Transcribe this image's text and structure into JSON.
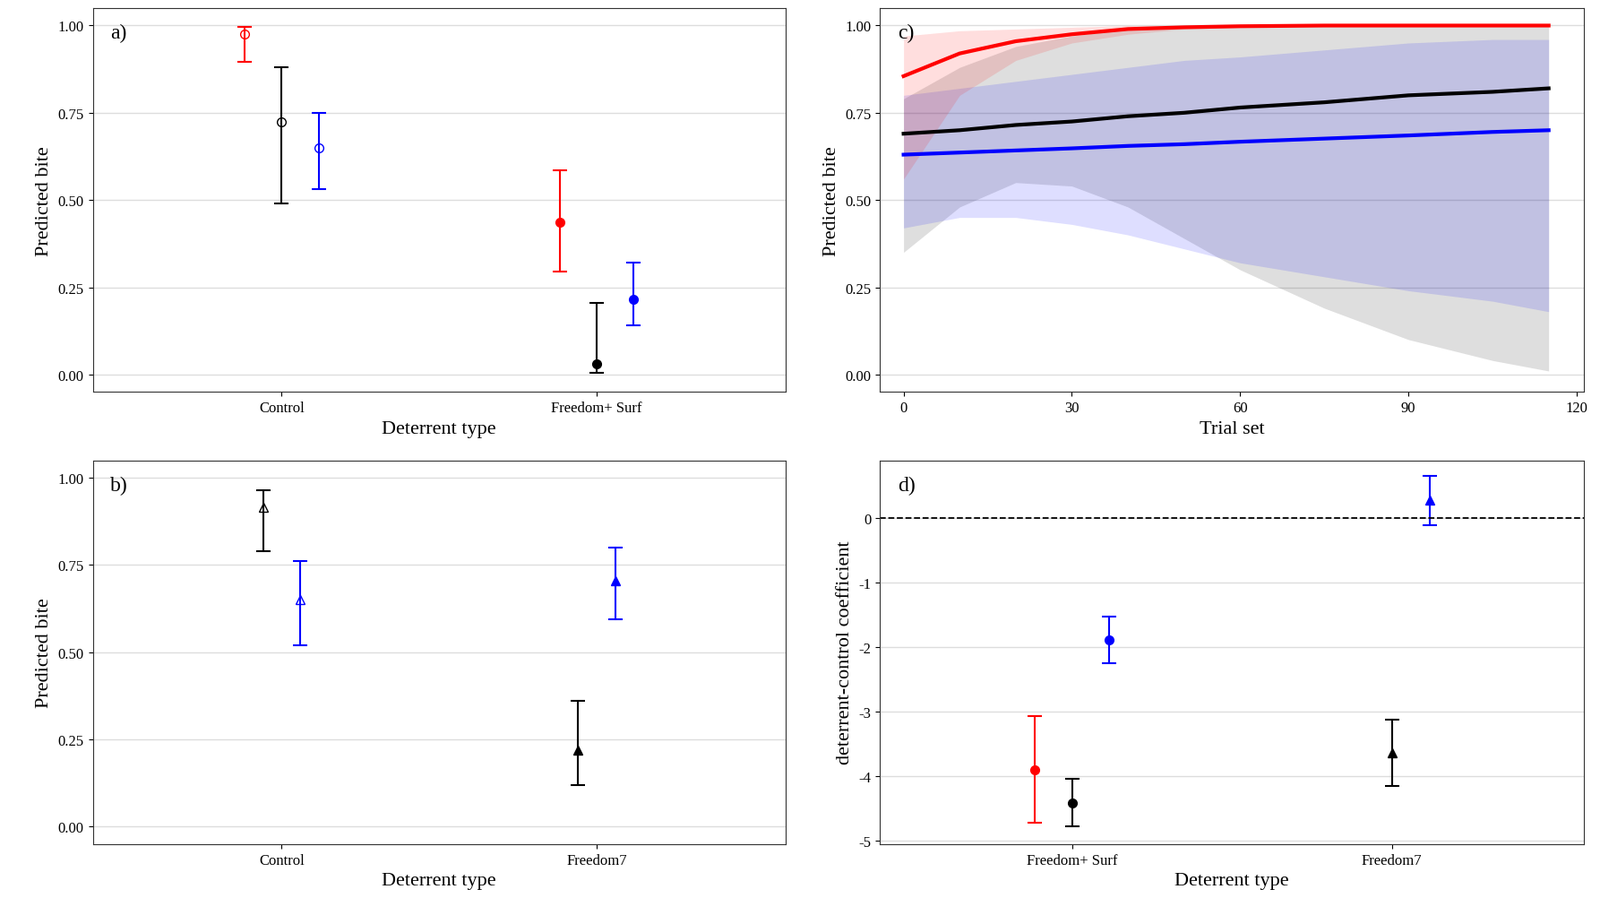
{
  "chart_data": [
    {
      "type": "errorbar",
      "title": "a)",
      "x_label": "Deterrent type",
      "y_label": "Predicted bite",
      "categories": [
        "Control",
        "Freedom+ Surf"
      ],
      "ylim": [
        -0.05,
        1.05
      ],
      "yticks": [
        {
          "value": 0,
          "label": "0.00"
        },
        {
          "value": 0.25,
          "label": "0.25"
        },
        {
          "value": 0.5,
          "label": "0.50"
        },
        {
          "value": 0.75,
          "label": "0.75"
        },
        {
          "value": 1,
          "label": "1.00"
        }
      ],
      "grid": true,
      "series": [
        {
          "color": "#ff0000",
          "marker": "open circle",
          "values": [
            0.975,
            null
          ],
          "lower": [
            0.895,
            null
          ],
          "upper": [
            0.995,
            null
          ]
        },
        {
          "color": "#000000",
          "marker": "open circle",
          "values": [
            0.725,
            null
          ],
          "lower": [
            0.49,
            null
          ],
          "upper": [
            0.88,
            null
          ]
        },
        {
          "color": "#0000ff",
          "marker": "open circle",
          "values": [
            0.65,
            null
          ],
          "lower": [
            0.53,
            null
          ],
          "upper": [
            0.75,
            null
          ]
        },
        {
          "color": "#ff0000",
          "marker": "circle",
          "values": [
            null,
            0.435
          ],
          "lower": [
            null,
            0.295
          ],
          "upper": [
            null,
            0.585
          ]
        },
        {
          "color": "#000000",
          "marker": "circle",
          "values": [
            null,
            0.03
          ],
          "lower": [
            null,
            0.005
          ],
          "upper": [
            null,
            0.205
          ]
        },
        {
          "color": "#0000ff",
          "marker": "circle",
          "values": [
            null,
            0.215
          ],
          "lower": [
            null,
            0.14
          ],
          "upper": [
            null,
            0.32
          ]
        }
      ]
    },
    {
      "type": "line",
      "title": "c)",
      "x_label": "Trial set",
      "y_label": "Predicted bite",
      "x": [
        0,
        10,
        20,
        30,
        40,
        50,
        60,
        75,
        90,
        105,
        115
      ],
      "xlim": [
        -4.2,
        121.3
      ],
      "xticks": [
        0,
        30,
        60,
        90,
        120
      ],
      "ylim": [
        -0.05,
        1.05
      ],
      "yticks": [
        {
          "value": 0,
          "label": "0.00"
        },
        {
          "value": 0.25,
          "label": "0.25"
        },
        {
          "value": 0.5,
          "label": "0.50"
        },
        {
          "value": 0.75,
          "label": "0.75"
        },
        {
          "value": 1,
          "label": "1.00"
        }
      ],
      "grid": true,
      "series": [
        {
          "color": "#000000",
          "values": [
            0.69,
            0.7,
            0.715,
            0.725,
            0.74,
            0.75,
            0.765,
            0.78,
            0.8,
            0.81,
            0.82
          ],
          "lower": [
            0.35,
            0.48,
            0.55,
            0.54,
            0.48,
            0.39,
            0.3,
            0.19,
            0.1,
            0.04,
            0.01
          ],
          "upper": [
            0.79,
            0.88,
            0.94,
            0.97,
            0.99,
            1.0,
            1.0,
            1.0,
            1.0,
            1.0,
            1.0
          ]
        },
        {
          "color": "#0000ff",
          "values": [
            0.63,
            0.636,
            0.642,
            0.648,
            0.655,
            0.66,
            0.667,
            0.676,
            0.685,
            0.695,
            0.7
          ],
          "lower": [
            0.42,
            0.45,
            0.45,
            0.43,
            0.4,
            0.36,
            0.32,
            0.28,
            0.24,
            0.21,
            0.18
          ],
          "upper": [
            0.8,
            0.82,
            0.84,
            0.86,
            0.88,
            0.9,
            0.91,
            0.93,
            0.95,
            0.96,
            0.96
          ]
        },
        {
          "color": "#ff0000",
          "values": [
            0.855,
            0.92,
            0.955,
            0.975,
            0.99,
            0.995,
            0.998,
            1.0,
            1.0,
            1.0,
            1.0
          ],
          "lower": [
            0.56,
            0.8,
            0.9,
            0.95,
            0.975,
            0.99,
            0.995,
            0.999,
            1.0,
            1.0,
            1.0
          ],
          "upper": [
            0.97,
            0.985,
            0.99,
            0.995,
            1.0,
            1.0,
            1.0,
            1.0,
            1.0,
            1.0,
            1.0
          ]
        }
      ]
    },
    {
      "type": "errorbar",
      "title": "b)",
      "x_label": "Deterrent type",
      "y_label": "Predicted bite",
      "categories": [
        "Control",
        "Freedom7"
      ],
      "ylim": [
        -0.05,
        1.05
      ],
      "yticks": [
        {
          "value": 0,
          "label": "0.00"
        },
        {
          "value": 0.25,
          "label": "0.25"
        },
        {
          "value": 0.5,
          "label": "0.50"
        },
        {
          "value": 0.75,
          "label": "0.75"
        },
        {
          "value": 1,
          "label": "1.00"
        }
      ],
      "grid": true,
      "series": [
        {
          "color": "#000000",
          "marker": "open triangle",
          "values": [
            0.915,
            null
          ],
          "lower": [
            0.79,
            null
          ],
          "upper": [
            0.965,
            null
          ]
        },
        {
          "color": "#0000ff",
          "marker": "open triangle",
          "values": [
            0.65,
            null
          ],
          "lower": [
            0.52,
            null
          ],
          "upper": [
            0.76,
            null
          ]
        },
        {
          "color": "#000000",
          "marker": "triangle",
          "values": [
            null,
            0.22
          ],
          "lower": [
            null,
            0.12
          ],
          "upper": [
            null,
            0.36
          ]
        },
        {
          "color": "#0000ff",
          "marker": "triangle",
          "values": [
            null,
            0.705
          ],
          "lower": [
            null,
            0.595
          ],
          "upper": [
            null,
            0.8
          ]
        }
      ]
    },
    {
      "type": "errorbar",
      "title": "d)",
      "x_label": "Deterrent type",
      "y_label": "deterrent-control coefficient",
      "categories": [
        "Freedom+ Surf",
        "Freedom7"
      ],
      "ylim": [
        -5.05,
        0.9
      ],
      "yticks": [
        -5,
        -4,
        -3,
        -2,
        -1,
        0
      ],
      "grid": true,
      "hline": {
        "value": 0,
        "line_style": "dashed"
      },
      "series": [
        {
          "color": "#ff0000",
          "marker": "circle",
          "values": [
            -3.9,
            null
          ],
          "lower": [
            -4.72,
            null
          ],
          "upper": [
            -3.07,
            null
          ]
        },
        {
          "color": "#000000",
          "marker": "circle",
          "values": [
            -4.42,
            null
          ],
          "lower": [
            -4.78,
            null
          ],
          "upper": [
            -4.04,
            null
          ]
        },
        {
          "color": "#0000ff",
          "marker": "circle",
          "values": [
            -1.88,
            null
          ],
          "lower": [
            -2.25,
            null
          ],
          "upper": [
            -1.52,
            null
          ]
        },
        {
          "color": "#000000",
          "marker": "triangle",
          "values": [
            null,
            -3.63
          ],
          "lower": [
            null,
            -4.15
          ],
          "upper": [
            null,
            -3.12
          ]
        },
        {
          "color": "#0000ff",
          "marker": "triangle",
          "values": [
            null,
            0.28
          ],
          "lower": [
            null,
            -0.1
          ],
          "upper": [
            null,
            0.66
          ]
        }
      ]
    }
  ]
}
